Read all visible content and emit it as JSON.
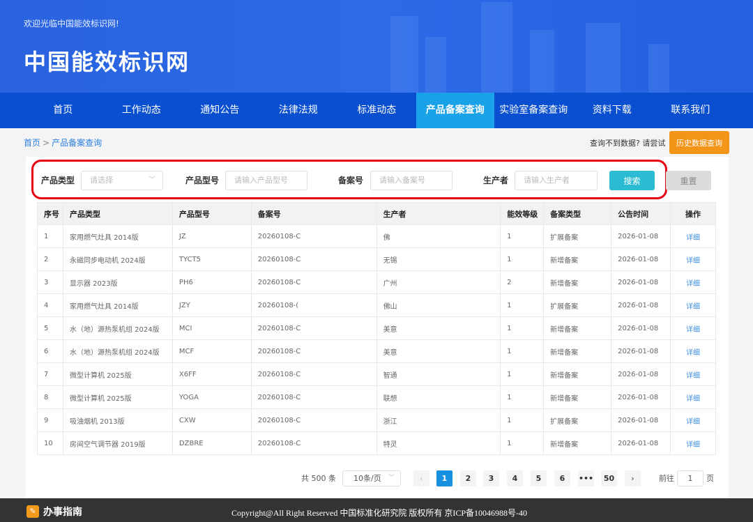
{
  "header": {
    "welcome": "欢迎光临中国能效标识网!",
    "logo": "中国能效标识网"
  },
  "nav": [
    {
      "label": "首页"
    },
    {
      "label": "工作动态"
    },
    {
      "label": "通知公告"
    },
    {
      "label": "法律法规"
    },
    {
      "label": "标准动态"
    },
    {
      "label": "产品备案查询",
      "active": true
    },
    {
      "label": "实验室备案查询"
    },
    {
      "label": "资料下载"
    },
    {
      "label": "联系我们"
    }
  ],
  "breadcrumb": {
    "home": "首页",
    "sep": ">",
    "current": "产品备案查询"
  },
  "hint": "查询不到数据? 请尝试",
  "history_button": "历史数据查询",
  "filters": {
    "type_label": "产品类型",
    "type_placeholder": "请选择",
    "model_label": "产品型号",
    "model_placeholder": "请输入产品型号",
    "record_label": "备案号",
    "record_placeholder": "请输入备案号",
    "maker_label": "生产者",
    "maker_placeholder": "请输入生产者",
    "search": "搜索",
    "reset": "重置"
  },
  "table": {
    "headers": [
      "序号",
      "产品类型",
      "产品型号",
      "备案号",
      "生产者",
      "能效等级",
      "备案类型",
      "公告时间",
      "操作"
    ],
    "rows": [
      [
        "1",
        "家用燃气灶具 2014版",
        "JZ",
        "20260108-C",
        "佛",
        "1",
        "扩展备案",
        "2026-01-08",
        "详细"
      ],
      [
        "2",
        "永磁同步电动机 2024版",
        "TYCT5",
        "20260108-C",
        "无锡",
        "1",
        "新增备案",
        "2026-01-08",
        "详细"
      ],
      [
        "3",
        "显示器 2023版",
        "PH6",
        "20260108-C",
        "广州",
        "2",
        "新增备案",
        "2026-01-08",
        "详细"
      ],
      [
        "4",
        "家用燃气灶具 2014版",
        "JZY",
        "20260108-(",
        "佛山",
        "1",
        "扩展备案",
        "2026-01-08",
        "详细"
      ],
      [
        "5",
        "水（地）源热泵机组 2024版",
        "MCI",
        "20260108-C",
        "美意",
        "1",
        "新增备案",
        "2026-01-08",
        "详细"
      ],
      [
        "6",
        "水（地）源热泵机组 2024版",
        "MCF",
        "20260108-C",
        "美意",
        "1",
        "新增备案",
        "2026-01-08",
        "详细"
      ],
      [
        "7",
        "微型计算机 2025版",
        "X6FF",
        "20260108-C",
        "智通",
        "1",
        "新增备案",
        "2026-01-08",
        "详细"
      ],
      [
        "8",
        "微型计算机 2025版",
        "YOGA",
        "20260108-C",
        "联想",
        "1",
        "新增备案",
        "2026-01-08",
        "详细"
      ],
      [
        "9",
        "吸油烟机 2013版",
        "CXW",
        "20260108-C",
        "浙江",
        "1",
        "扩展备案",
        "2026-01-08",
        "详细"
      ],
      [
        "10",
        "房间空气调节器 2019版",
        "DZBRE",
        "20260108-C",
        "特灵",
        "1",
        "新增备案",
        "2026-01-08",
        "详细"
      ]
    ]
  },
  "pagination": {
    "total": "共 500 条",
    "page_size": "10条/页",
    "pages": [
      "1",
      "2",
      "3",
      "4",
      "5",
      "6",
      "•••",
      "50"
    ],
    "current_page": "1",
    "goto_label": "前往",
    "goto_value": "1",
    "page_unit": "页",
    "prev": "‹",
    "next": "›"
  },
  "footer": {
    "guide": "办事指南",
    "copyright": "Copyright@All Right Reserved 中国标准化研究院 版权所有 京ICP备10046988号-40"
  },
  "colors": {
    "nav": "#0a4fcf",
    "nav_active": "#1aa2e8",
    "search": "#2bbcd4",
    "history": "#f39519",
    "highlight_box": "#e60012"
  }
}
